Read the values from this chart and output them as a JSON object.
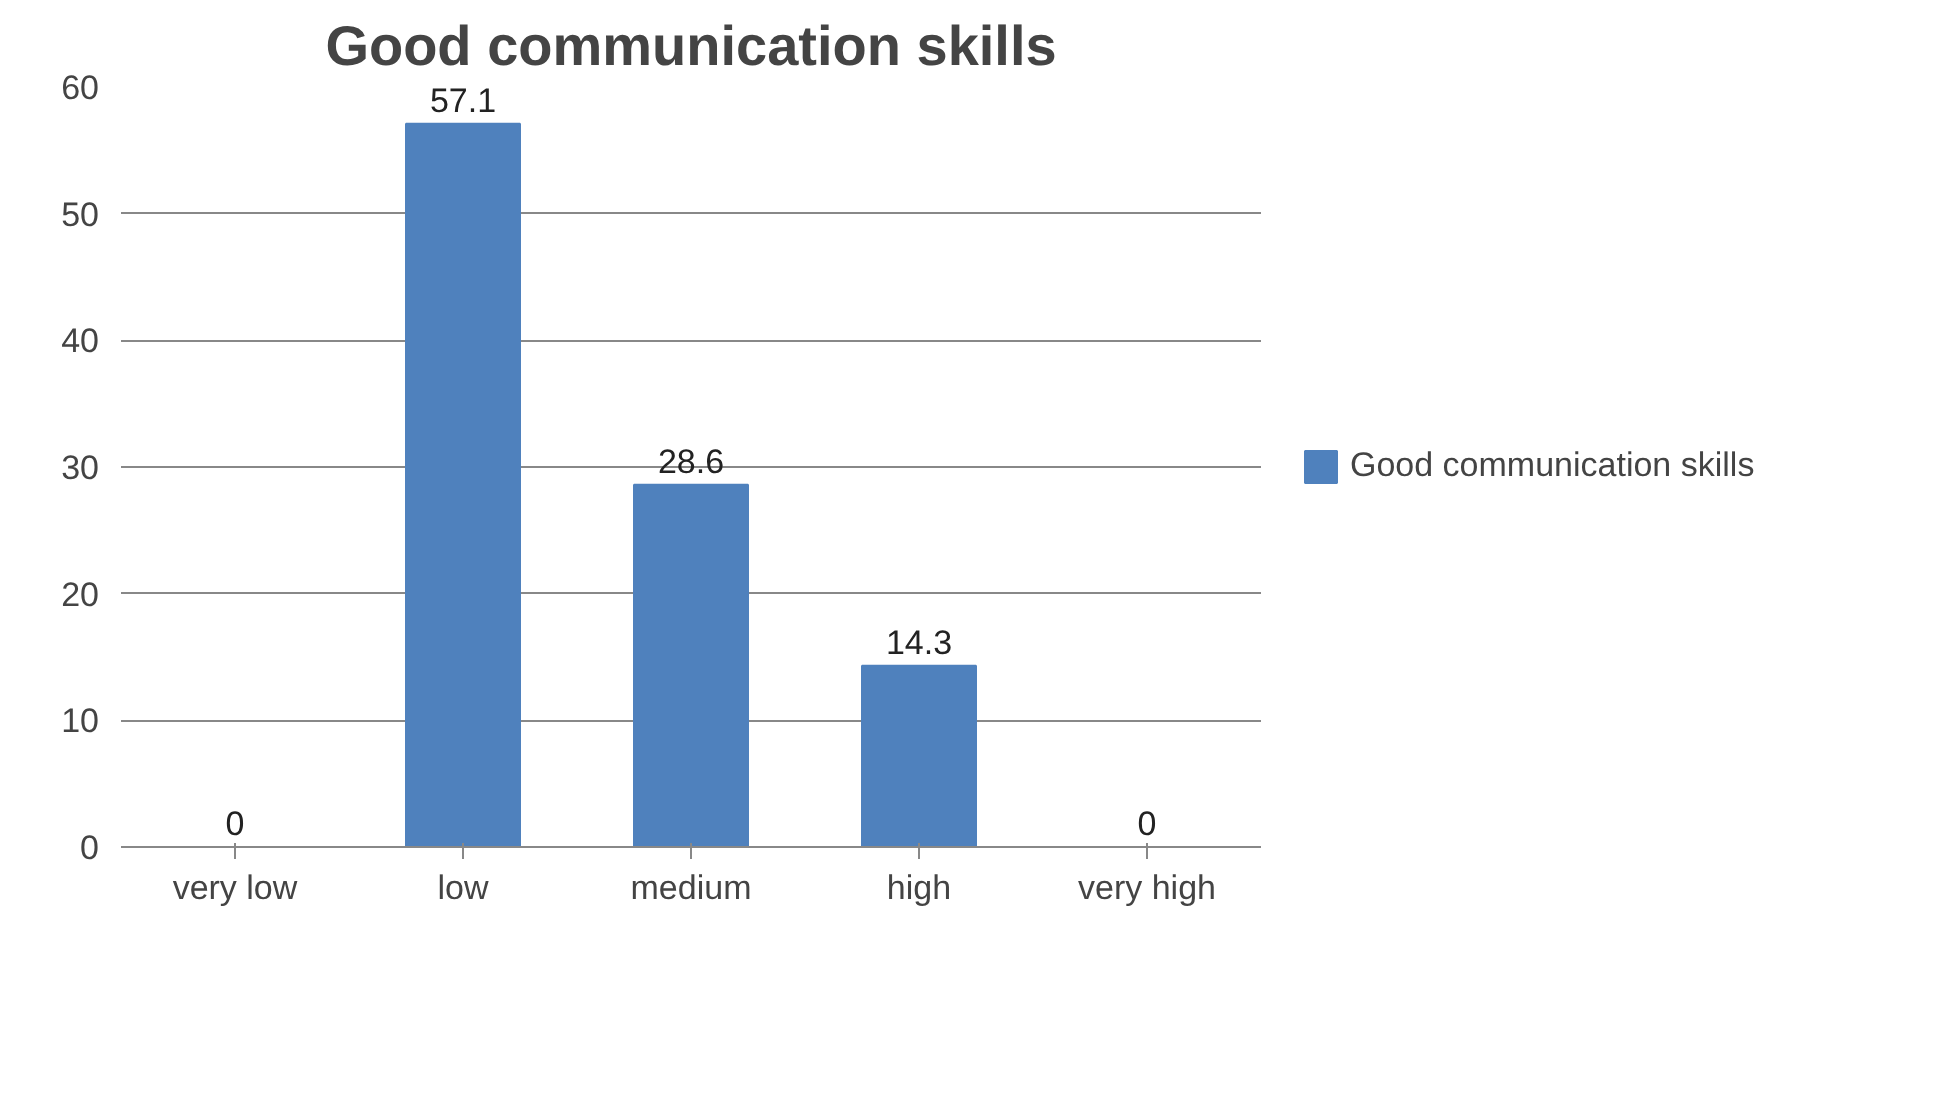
{
  "chart_data": {
    "type": "bar",
    "title": "Good communication skills",
    "categories": [
      "very low",
      "low",
      "medium",
      "high",
      "very high"
    ],
    "series": [
      {
        "name": "Good communication skills",
        "color": "#4f81bd",
        "values": [
          0,
          57.1,
          28.6,
          14.3,
          0
        ]
      }
    ],
    "ylim": [
      0,
      60
    ],
    "yticks": [
      0,
      10,
      20,
      30,
      40,
      50,
      60
    ],
    "grid": "y",
    "legend": "right",
    "data_labels": true
  }
}
